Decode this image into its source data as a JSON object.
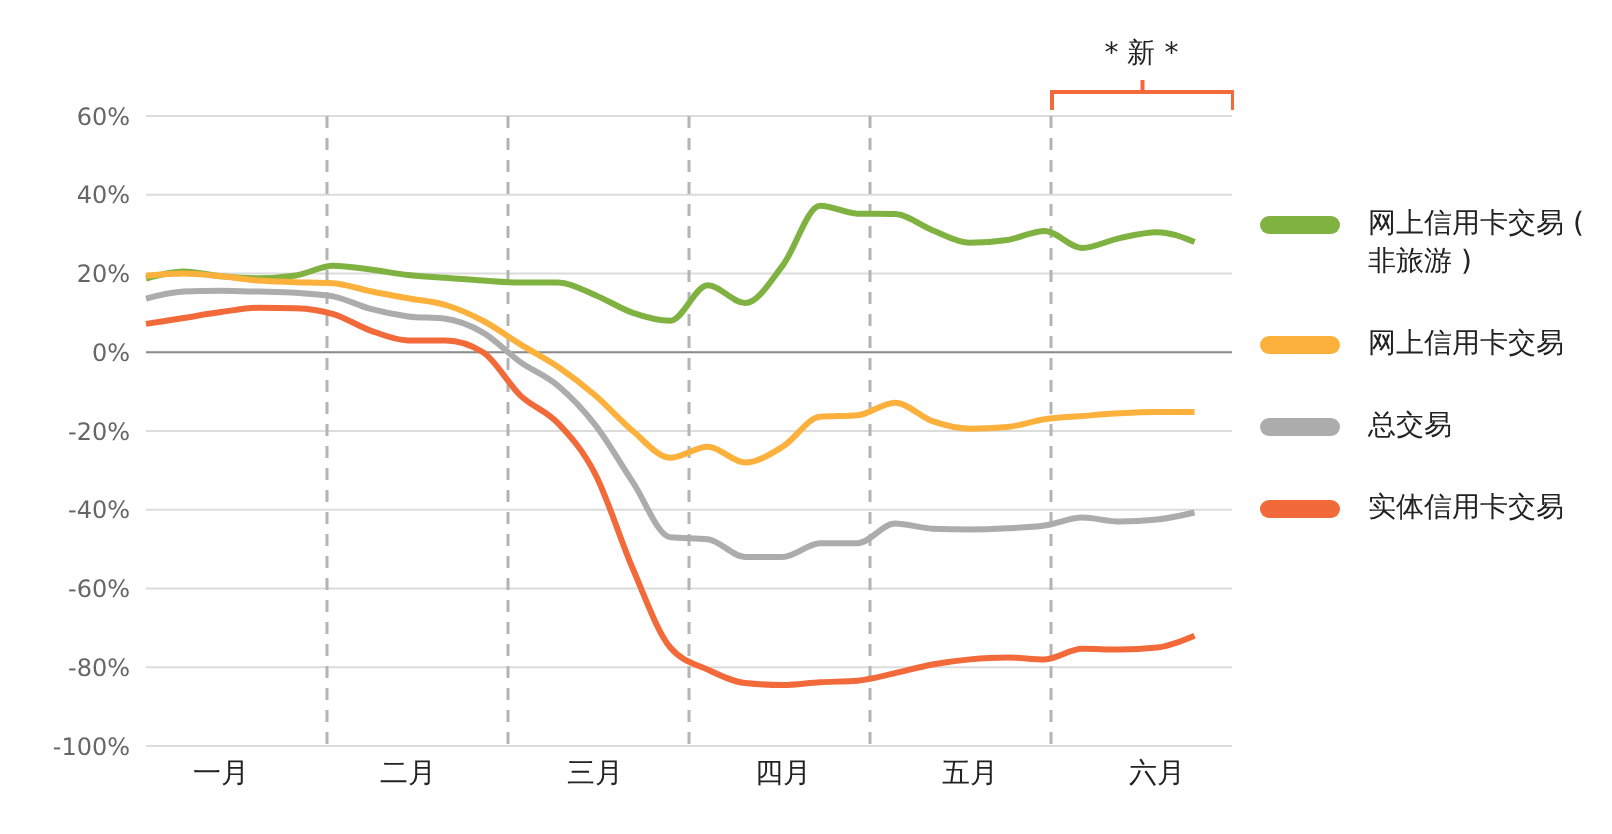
{
  "chart_data": {
    "type": "line",
    "categories": [
      null,
      null,
      "一月",
      null,
      null,
      null,
      null,
      "二月",
      null,
      null,
      null,
      null,
      "三月",
      null,
      null,
      null,
      null,
      "四月",
      null,
      null,
      null,
      null,
      "五月",
      null,
      null,
      null,
      null,
      "六月",
      null,
      null
    ],
    "ylim": [
      -100,
      60
    ],
    "yticks": [
      {
        "value": -100,
        "label": "-100%"
      },
      {
        "value": -80,
        "label": "-80%"
      },
      {
        "value": -60,
        "label": "-60%"
      },
      {
        "value": -40,
        "label": "-40%"
      },
      {
        "value": -20,
        "label": "-20%"
      },
      {
        "value": 0,
        "label": "0%"
      },
      {
        "value": 20,
        "label": "20%"
      },
      {
        "value": 40,
        "label": "40%"
      },
      {
        "value": 60,
        "label": "60%"
      }
    ],
    "grid": true,
    "legend": "right",
    "marker": "none",
    "line_style": "solid",
    "ref_lines": [
      {
        "axis": "y",
        "value": 0,
        "color": "#8c8c8c",
        "line_style": "solid"
      }
    ],
    "annotations": [
      "* 新 *"
    ],
    "series": [
      {
        "name": "网上信用卡交易 ( 非旅游 )",
        "color": "#7fb241",
        "values": [
          18.7,
          20.5,
          19.3,
          18.8,
          19.5,
          22,
          21,
          19.6,
          18.9,
          18.2,
          17.7,
          17.7,
          14.5,
          10,
          8,
          17,
          12.5,
          22,
          37.2,
          35.2,
          35.1,
          31,
          27.8,
          28.5,
          30.8,
          26.5,
          29,
          30.5,
          28,
          null
        ]
      },
      {
        "name": "网上信用卡交易",
        "color": "#fbb13c",
        "values": [
          19.4,
          20,
          19.3,
          18.2,
          17.8,
          17.5,
          15.5,
          13.7,
          12,
          8,
          2,
          -3.7,
          -11,
          -20,
          -26.8,
          -24,
          -28,
          -24,
          -16.4,
          -16,
          -12.8,
          -17.5,
          -19.4,
          -19,
          -17,
          -16.2,
          -15.5,
          -15.2,
          -15.2,
          null
        ]
      },
      {
        "name": "总交易",
        "color": "#acacac",
        "values": [
          13.6,
          15.4,
          15.6,
          15.4,
          15.1,
          14.2,
          11,
          9.1,
          8.5,
          5,
          -2.5,
          -8.5,
          -18.5,
          -33,
          -47,
          -47.5,
          -52,
          -52,
          -48.5,
          -48.5,
          -43.5,
          -44.8,
          -45,
          -44.7,
          -44,
          -42,
          -43,
          -42.5,
          -40.7,
          null
        ]
      },
      {
        "name": "实体信用卡交易",
        "color": "#f26a3a",
        "values": [
          7.2,
          8.7,
          10.2,
          11.3,
          11.2,
          9.7,
          5.5,
          3,
          3,
          0,
          -11,
          -18,
          -31,
          -55,
          -75,
          -80.6,
          -84,
          -84.5,
          -83.8,
          -83.4,
          -81.5,
          -79.3,
          -78,
          -77.5,
          -78,
          -75.3,
          -75.5,
          -75,
          -72,
          null
        ]
      }
    ]
  }
}
